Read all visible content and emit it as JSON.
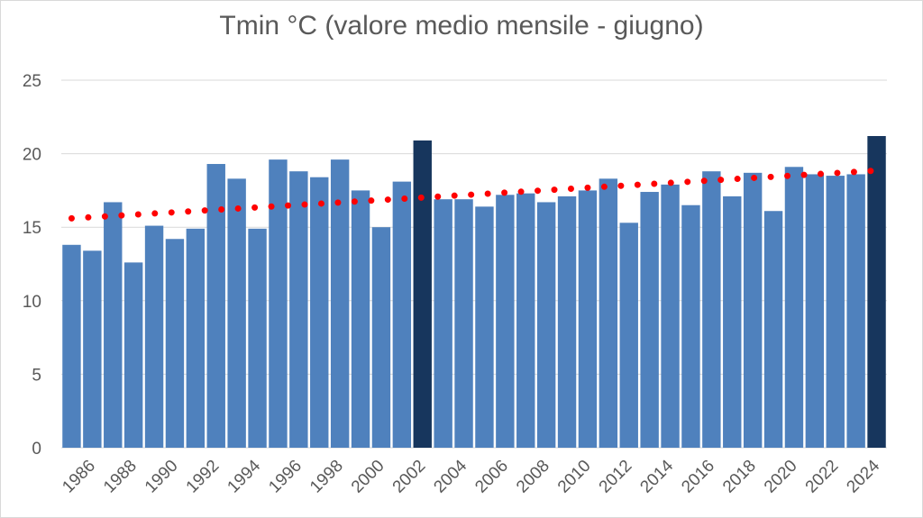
{
  "chart_data": {
    "type": "bar",
    "title": "Tmin °C (valore medio mensile - giugno)",
    "xlabel": "",
    "ylabel": "",
    "ylim": [
      0,
      25
    ],
    "yticks": [
      0,
      5,
      10,
      15,
      20,
      25
    ],
    "grid": true,
    "legend": "none",
    "categories": [
      "1986",
      "1987",
      "1988",
      "1989",
      "1990",
      "1991",
      "1992",
      "1993",
      "1994",
      "1995",
      "1996",
      "1997",
      "1998",
      "1999",
      "2000",
      "2001",
      "2002",
      "2003",
      "2004",
      "2005",
      "2006",
      "2007",
      "2008",
      "2009",
      "2010",
      "2011",
      "2012",
      "2013",
      "2014",
      "2015",
      "2016",
      "2017",
      "2018",
      "2019",
      "2020",
      "2021",
      "2022",
      "2023",
      "2024",
      "2025"
    ],
    "x_tick_labels": [
      "1986",
      "1988",
      "1990",
      "1992",
      "1994",
      "1996",
      "1998",
      "2000",
      "2002",
      "2004",
      "2006",
      "2008",
      "2010",
      "2012",
      "2014",
      "2016",
      "2018",
      "2020",
      "2022",
      "2024"
    ],
    "values": [
      13.8,
      13.4,
      16.7,
      12.6,
      15.1,
      14.2,
      14.9,
      19.3,
      18.3,
      14.9,
      19.6,
      18.8,
      18.4,
      19.6,
      17.5,
      15.0,
      18.1,
      20.9,
      16.9,
      16.9,
      16.4,
      17.2,
      17.3,
      16.7,
      17.1,
      17.5,
      18.3,
      15.3,
      17.4,
      17.9,
      16.5,
      18.8,
      17.1,
      18.7,
      16.1,
      19.1,
      18.6,
      18.5,
      18.6,
      21.2
    ],
    "highlight_years": [
      "2003",
      "2025"
    ],
    "trendline": {
      "type": "linear",
      "start": 15.6,
      "end": 18.85,
      "color": "#ff0000",
      "style": "dotted"
    },
    "colors": {
      "bar": "#4f81bd",
      "highlight": "#17365d",
      "grid": "#d9d9d9",
      "text": "#595959"
    }
  }
}
